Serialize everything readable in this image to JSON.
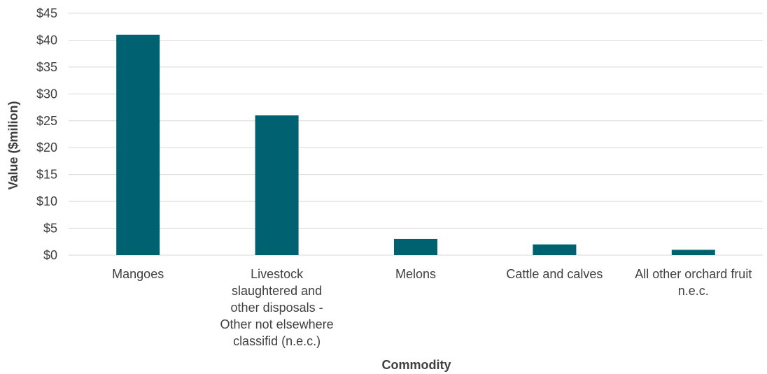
{
  "chart_data": {
    "type": "bar",
    "categories": [
      [
        "Mangoes"
      ],
      [
        "Livestock",
        "slaughtered and",
        "other disposals -",
        "Other not elsewhere",
        "classifid (n.e.c.)"
      ],
      [
        "Melons"
      ],
      [
        "Cattle and calves"
      ],
      [
        "All other orchard fruit",
        "n.e.c."
      ]
    ],
    "values": [
      41,
      26,
      3,
      2,
      1
    ],
    "ylim": [
      0,
      45
    ],
    "yticks": [
      0,
      5,
      10,
      15,
      20,
      25,
      30,
      35,
      40,
      45
    ],
    "ytick_labels": [
      "$0",
      "$5",
      "$10",
      "$15",
      "$20",
      "$25",
      "$30",
      "$35",
      "$40",
      "$45"
    ],
    "xlabel": "Commodity",
    "ylabel": "Value ($milion)",
    "grid": true,
    "bar_color": "#006170",
    "grid_color": "#d9d9d9"
  }
}
